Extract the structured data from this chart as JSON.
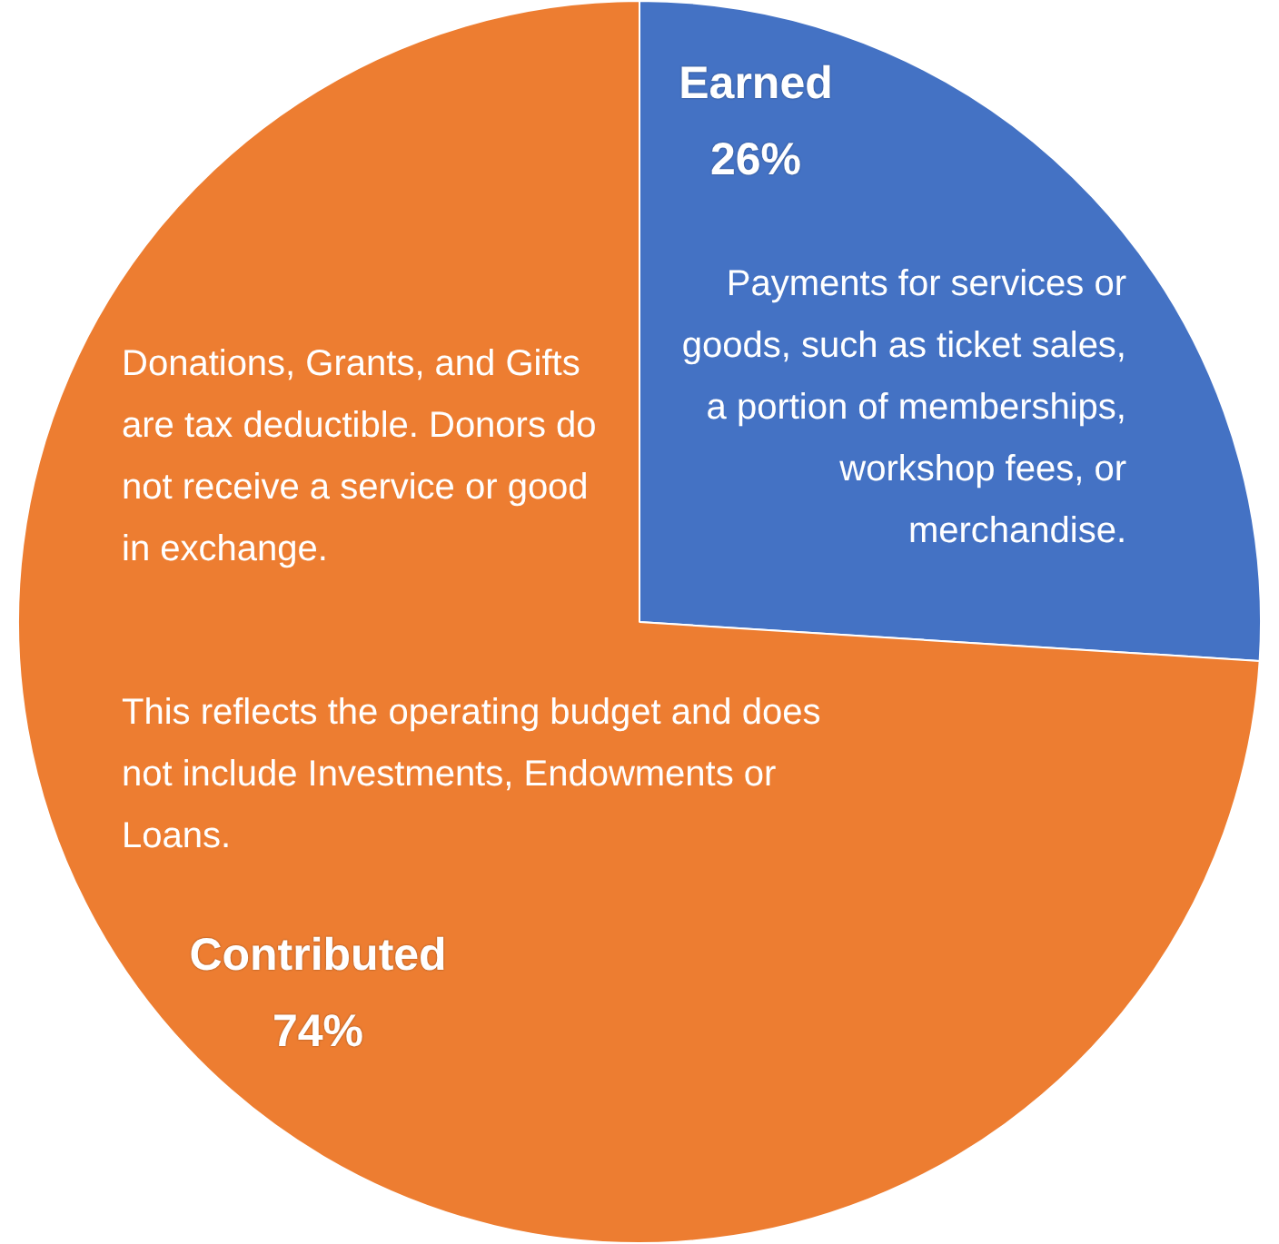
{
  "chart_data": {
    "type": "pie",
    "categories": [
      "Earned",
      "Contributed"
    ],
    "values": [
      26,
      74
    ],
    "colors": [
      "#4472c4",
      "#ed7d31"
    ],
    "value_labels": [
      "26%",
      "74%"
    ],
    "annotations": [
      "Payments for services or goods, such as ticket sales, a portion of memberships, workshop fees, or merchandise.",
      "Donations, Grants, and Gifts are tax deductible. Donors do not receive a service or good in exchange.",
      "This reflects the operating budget and does not include Investments, Endowments or Loans."
    ]
  }
}
